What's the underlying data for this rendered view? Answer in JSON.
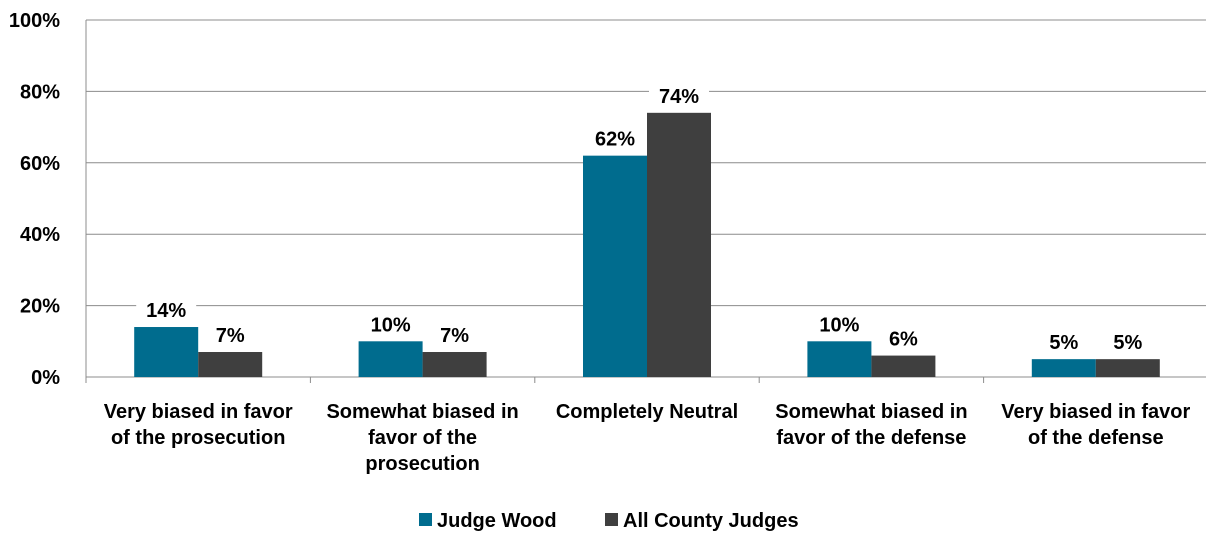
{
  "chart_data": {
    "type": "bar",
    "categories": [
      [
        "Very biased in favor",
        "of the prosecution"
      ],
      [
        "Somewhat biased in",
        "favor of the",
        "prosecution"
      ],
      [
        "Completely Neutral"
      ],
      [
        "Somewhat biased in",
        "favor of the defense"
      ],
      [
        "Very biased in favor",
        "of the defense"
      ]
    ],
    "series": [
      {
        "name": "Judge Wood",
        "values": [
          14,
          10,
          62,
          10,
          5
        ],
        "labels": [
          "14%",
          "10%",
          "62%",
          "10%",
          "5%"
        ],
        "color": "#006c8e"
      },
      {
        "name": "All County Judges",
        "values": [
          7,
          7,
          74,
          6,
          5
        ],
        "labels": [
          "7%",
          "7%",
          "74%",
          "6%",
          "5%"
        ],
        "color": "#3f3f3f"
      }
    ],
    "ylim": [
      0,
      100
    ],
    "yticks": [
      "0%",
      "20%",
      "40%",
      "60%",
      "80%",
      "100%"
    ],
    "ytick_values": [
      0,
      20,
      40,
      60,
      80,
      100
    ],
    "grid": true,
    "legend": "bottom-center",
    "title": "",
    "xlabel": "",
    "ylabel": ""
  }
}
